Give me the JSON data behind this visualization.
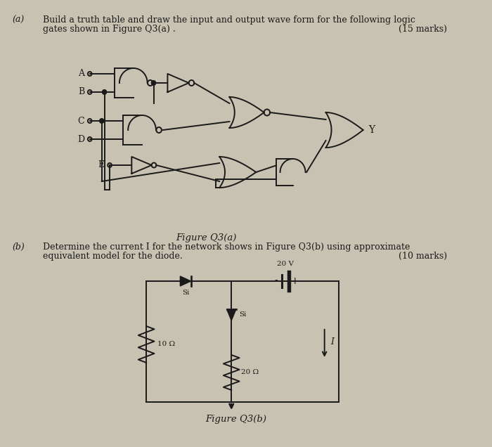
{
  "bg_color": "#c8c2b2",
  "text_color": "#1a1a1a",
  "line_color": "#1a1a1a",
  "part_a_label": "(a)",
  "part_a_text_line1": "Build a truth table and draw the input and output wave form for the following logic",
  "part_a_text_line2": "gates shown in Figure Q3(a) .",
  "part_a_marks": "(15 marks)",
  "fig_a_caption": "Figure Q3(a)",
  "part_b_label": "(b)",
  "part_b_text_line1": "Determine the current I for the network shows in Figure Q3(b) using approximate",
  "part_b_text_line2": "equivalent model for the diode.",
  "part_b_marks": "(10 marks)",
  "fig_b_caption": "Figure Q3(b)",
  "output_label": "Y",
  "voltage_label": "20 V",
  "r1_label": "10 Ω",
  "r2_label": "20 Ω",
  "si_label": "Si",
  "si2_label": "Si"
}
